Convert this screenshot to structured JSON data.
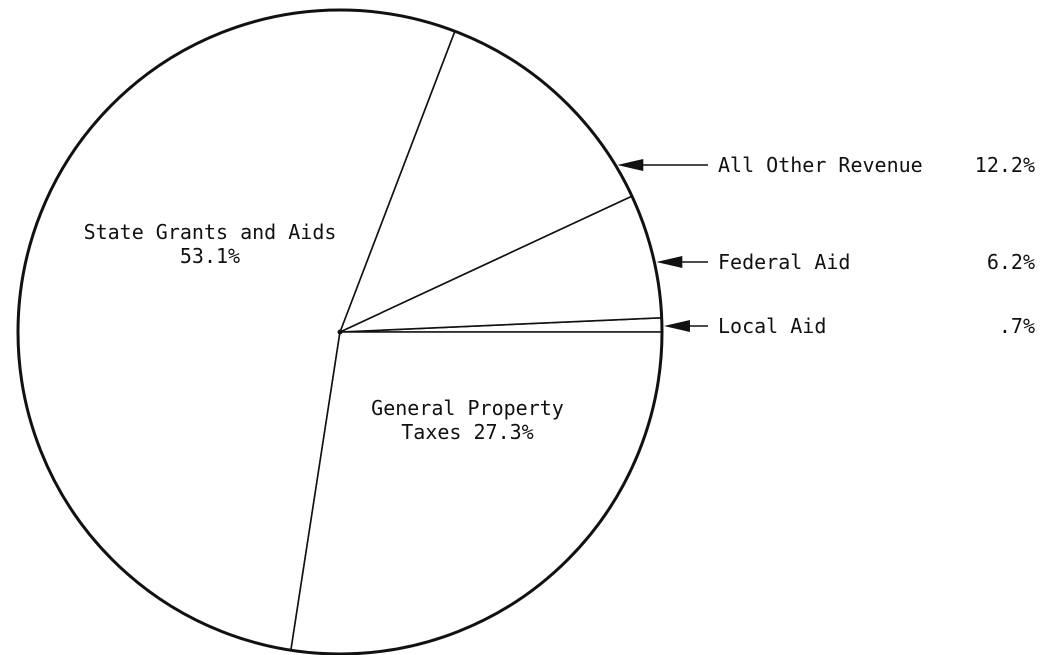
{
  "chart_data": {
    "type": "pie",
    "categories": [
      "Local Aid",
      "Federal Aid",
      "All Other Revenue",
      "State Grants and Aids",
      "General Property Taxes"
    ],
    "values": [
      0.7,
      6.2,
      12.2,
      53.1,
      27.3
    ],
    "value_labels": [
      ".7%",
      "6.2%",
      "12.2%",
      "53.1%",
      "27.3%"
    ],
    "color": "#ffffff"
  }
}
